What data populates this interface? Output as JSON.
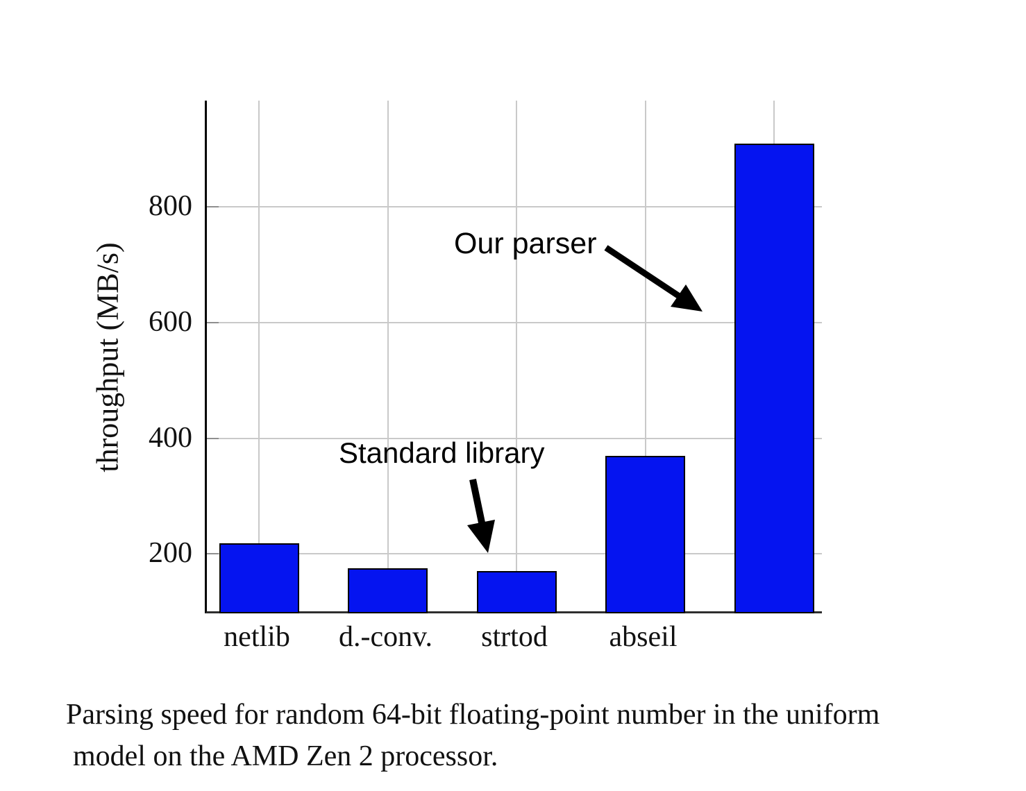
{
  "figure": {
    "caption_line1": "Parsing speed for random 64-bit floating-point number in the uniform",
    "caption_line2": "model on the AMD Zen 2 processor."
  },
  "chart_data": {
    "type": "bar",
    "title": "",
    "categories": [
      "netlib",
      "d.-conv.",
      "strtod",
      "abseil",
      ""
    ],
    "values": [
      218,
      175,
      170,
      370,
      910
    ],
    "xlabel": "",
    "ylabel": "throughput (MB/s)",
    "yticks": [
      200,
      400,
      600,
      800
    ],
    "ytick_labels": [
      "200",
      "400",
      "600",
      "800"
    ],
    "ylim": [
      97,
      984
    ],
    "grid": true,
    "legend_position": "none",
    "bar_color": "#0514f0",
    "bar_edge_color": "#000000",
    "grid_color": "#c9c9c9",
    "annotations": [
      {
        "text": "Our parser",
        "points_to": "unlabeled fifth bar"
      },
      {
        "text": "Standard library",
        "points_to": "strtod bar"
      }
    ]
  }
}
